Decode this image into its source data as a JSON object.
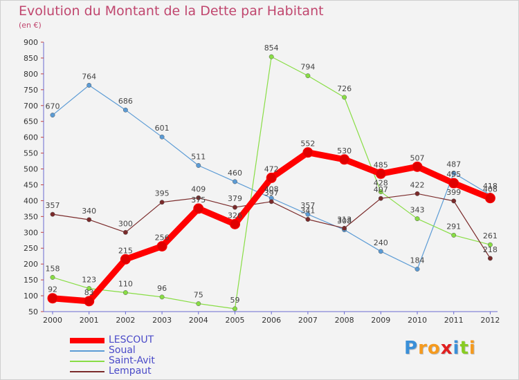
{
  "chart_data": {
    "type": "line",
    "title": "Evolution du Montant de la Dette par Habitant",
    "subtitle": "(en €)",
    "x": [
      "2000",
      "2001",
      "2002",
      "2003",
      "2004",
      "2005",
      "2006",
      "2007",
      "2008",
      "2009",
      "2010",
      "2011",
      "2012"
    ],
    "ylim": [
      50,
      900
    ],
    "yticks": [
      50,
      100,
      150,
      200,
      250,
      300,
      350,
      400,
      450,
      500,
      550,
      600,
      650,
      700,
      750,
      800,
      850,
      900
    ],
    "grid": false,
    "legend_position": "bottom-left",
    "series": [
      {
        "name": "LESCOUT",
        "color": "#ff0000",
        "values": [
          92,
          83,
          215,
          256,
          375,
          326,
          472,
          552,
          530,
          485,
          507,
          455,
          408
        ]
      },
      {
        "name": "Soual",
        "color": "#5b9bd5",
        "values": [
          670,
          764,
          686,
          601,
          511,
          460,
          408,
          357,
          308,
          240,
          184,
          487,
          418
        ]
      },
      {
        "name": "Saint-Avit",
        "color": "#88dd44",
        "values": [
          158,
          123,
          110,
          96,
          75,
          59,
          854,
          794,
          726,
          428,
          343,
          291,
          261
        ]
      },
      {
        "name": "Lempaut",
        "color": "#7a2a2a",
        "values": [
          357,
          340,
          300,
          395,
          409,
          379,
          397,
          341,
          313,
          407,
          422,
          399,
          218
        ]
      }
    ]
  },
  "logo": {
    "text": "Proxiti",
    "letters": [
      "P",
      "r",
      "o",
      "x",
      "i",
      "t",
      "i"
    ],
    "colors": [
      "#3a8fd8",
      "#f59a1e",
      "#f59a1e",
      "#e02020",
      "#3a8fd8",
      "#88cc22",
      "#f59a1e"
    ]
  }
}
